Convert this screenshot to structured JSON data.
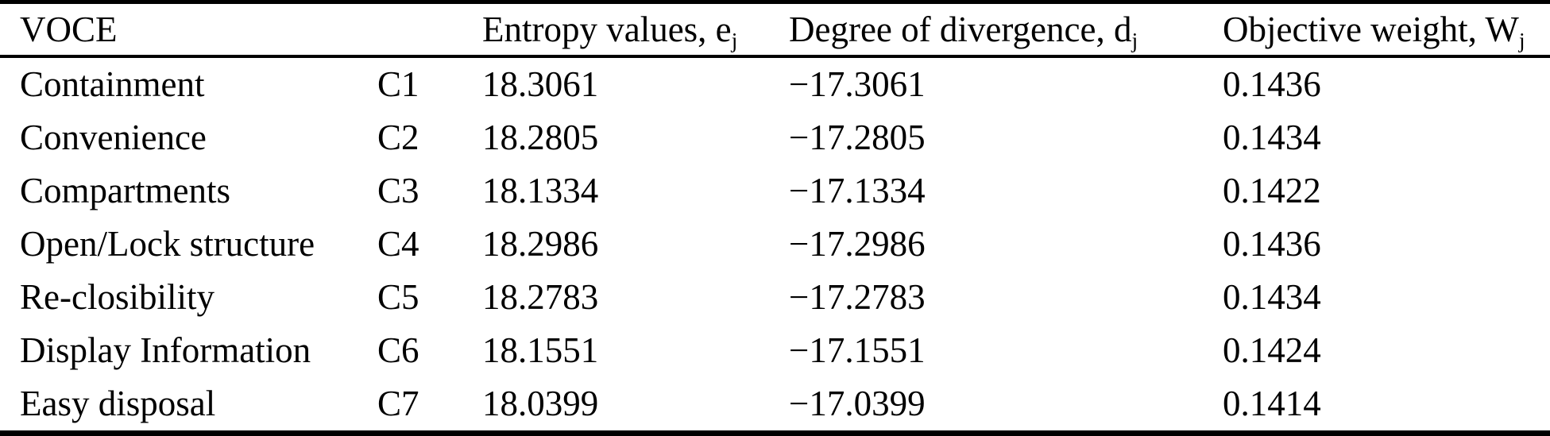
{
  "colors": {
    "text": "#000000",
    "background": "#ffffff",
    "rule": "#000000"
  },
  "table": {
    "columns": [
      {
        "label": "VOCE",
        "sub": ""
      },
      {
        "label": "",
        "sub": ""
      },
      {
        "label": "Entropy values, e",
        "sub": "j"
      },
      {
        "label": "Degree of divergence, d",
        "sub": "j"
      },
      {
        "label": "Objective weight, W",
        "sub": "j"
      }
    ],
    "rows": [
      {
        "name": "Containment",
        "code": "C1",
        "entropy": "18.3061",
        "divergence": "−17.3061",
        "weight": "0.1436"
      },
      {
        "name": "Convenience",
        "code": "C2",
        "entropy": "18.2805",
        "divergence": "−17.2805",
        "weight": "0.1434"
      },
      {
        "name": "Compartments",
        "code": "C3",
        "entropy": "18.1334",
        "divergence": "−17.1334",
        "weight": "0.1422"
      },
      {
        "name": "Open/Lock structure",
        "code": "C4",
        "entropy": "18.2986",
        "divergence": "−17.2986",
        "weight": "0.1436"
      },
      {
        "name": "Re-closibility",
        "code": "C5",
        "entropy": "18.2783",
        "divergence": "−17.2783",
        "weight": "0.1434"
      },
      {
        "name": "Display Information",
        "code": "C6",
        "entropy": "18.1551",
        "divergence": "−17.1551",
        "weight": "0.1424"
      },
      {
        "name": "Easy disposal",
        "code": "C7",
        "entropy": "18.0399",
        "divergence": "−17.0399",
        "weight": "0.1414"
      }
    ]
  }
}
